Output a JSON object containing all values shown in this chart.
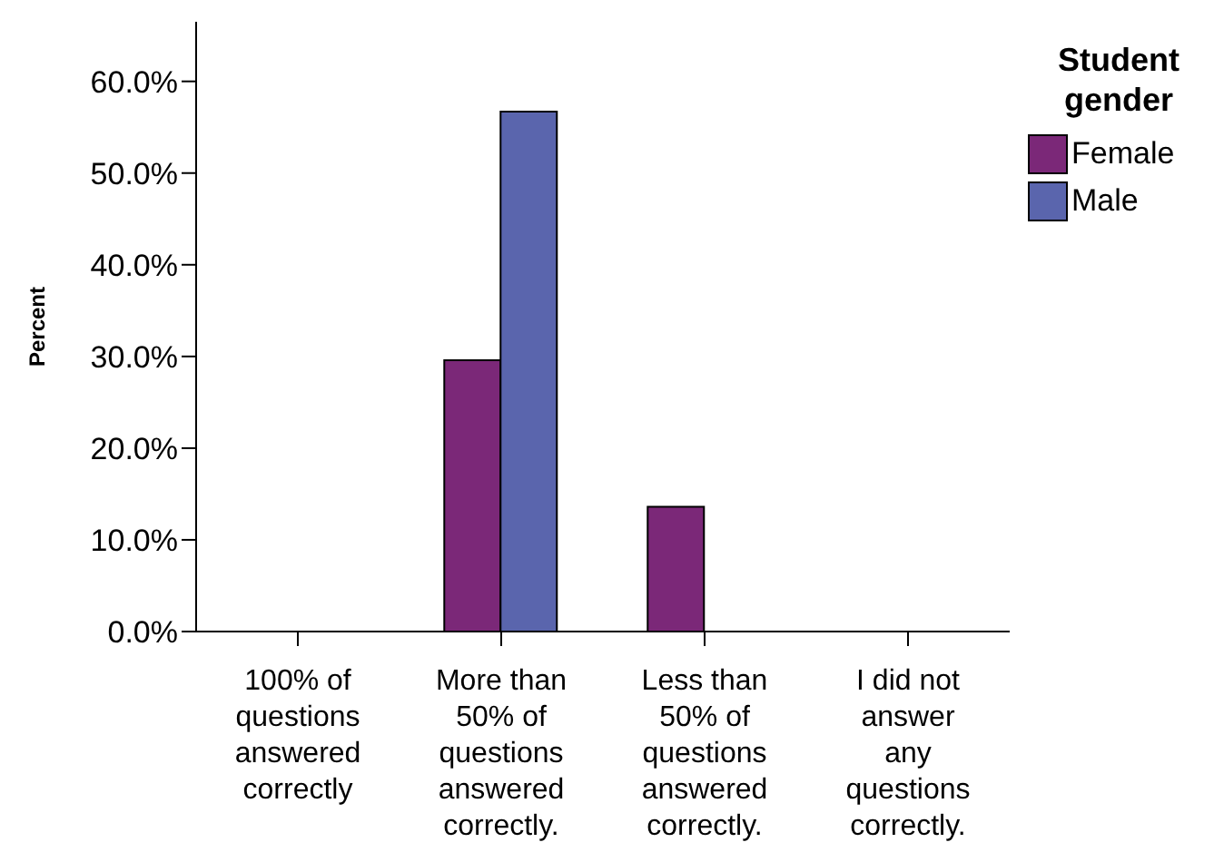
{
  "chart_data": {
    "type": "bar",
    "ylabel": "Percent",
    "legend_title": "Student gender",
    "legend": "right",
    "categories": [
      "100% of questions answered correctly",
      "More than 50% of questions answered correctly.",
      "Less than 50% of questions answered correctly.",
      "I did not answer any questions correctly."
    ],
    "series": [
      {
        "name": "Female",
        "color": "#7b2878",
        "values": [
          0,
          29.6,
          13.6,
          0
        ]
      },
      {
        "name": "Male",
        "color": "#5a65ad",
        "values": [
          0,
          56.7,
          0,
          0
        ]
      }
    ],
    "ylim": [
      0,
      66.5
    ],
    "yticks": [
      {
        "value": 0,
        "label": "0.0%"
      },
      {
        "value": 10,
        "label": "10.0%"
      },
      {
        "value": 20,
        "label": "20.0%"
      },
      {
        "value": 30,
        "label": "30.0%"
      },
      {
        "value": 40,
        "label": "40.0%"
      },
      {
        "value": 50,
        "label": "50.0%"
      },
      {
        "value": 60,
        "label": "60.0%"
      }
    ],
    "grid": false
  }
}
